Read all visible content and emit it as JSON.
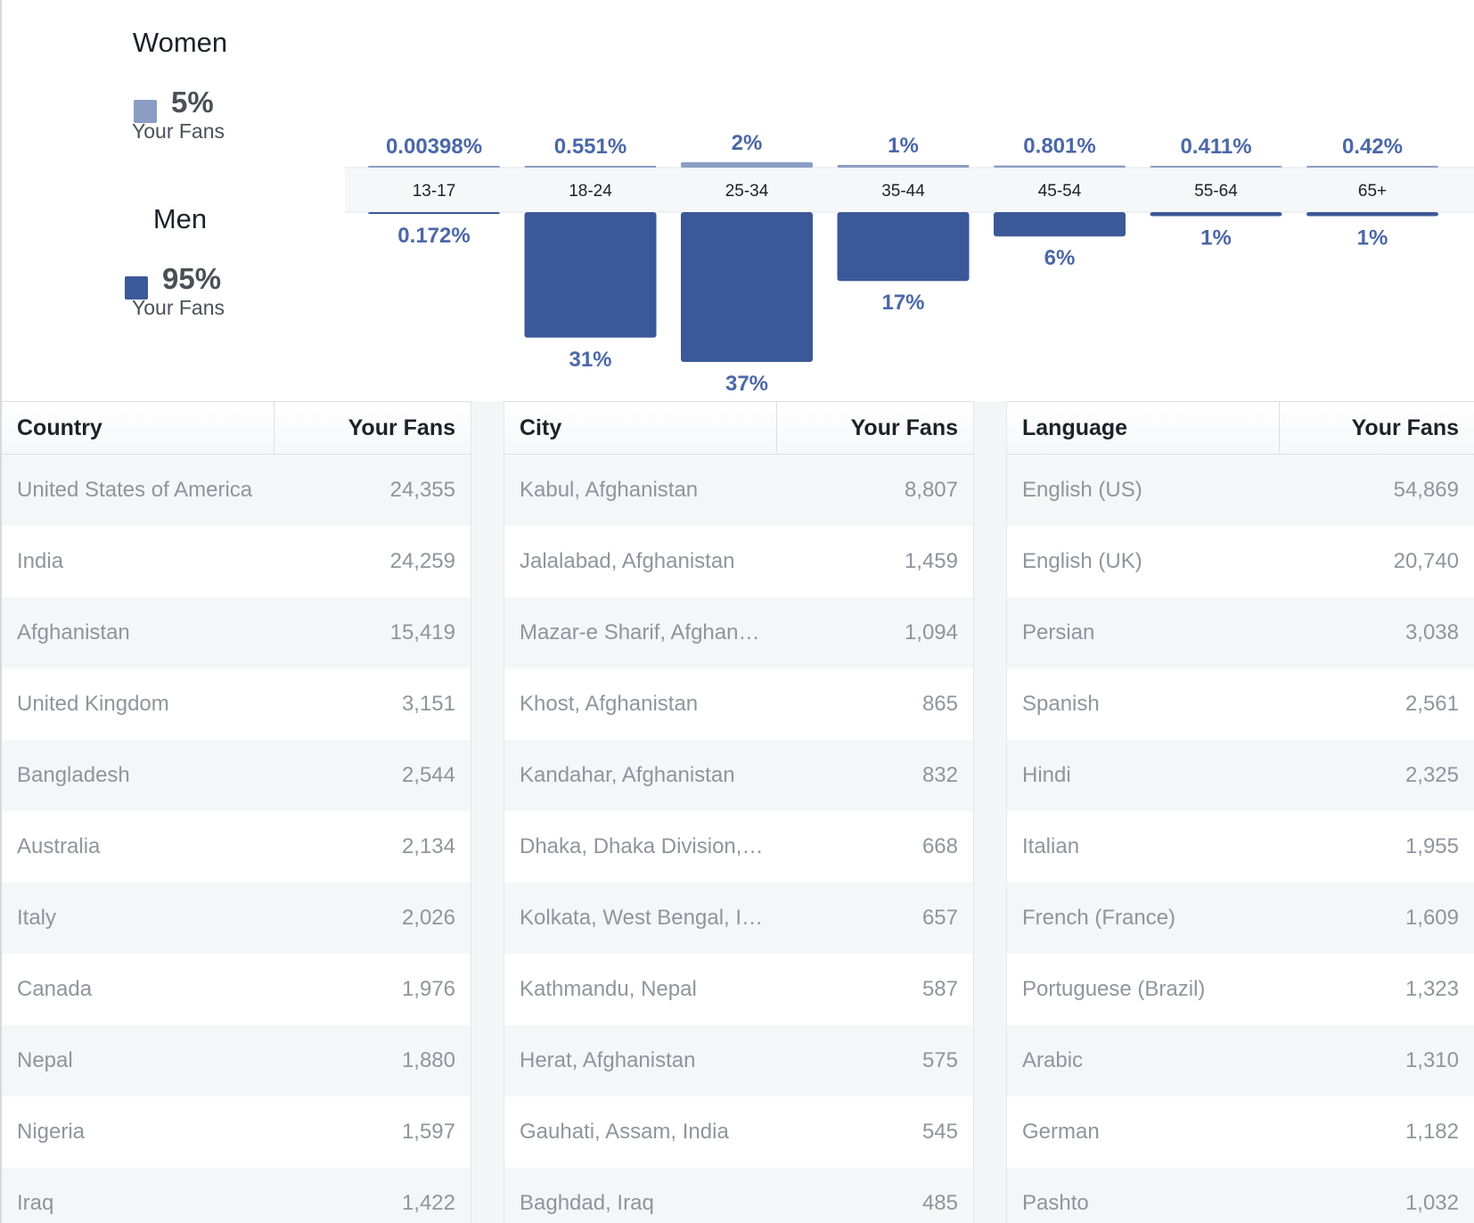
{
  "gender": {
    "women": {
      "title": "Women",
      "percent": "5%",
      "sub": "Your Fans",
      "color": "#8b9dc3"
    },
    "men": {
      "title": "Men",
      "percent": "95%",
      "sub": "Your Fans",
      "color": "#3b5998"
    }
  },
  "chart_data": {
    "type": "bar",
    "title": "",
    "categories": [
      "13-17",
      "18-24",
      "25-34",
      "35-44",
      "45-54",
      "55-64",
      "65+"
    ],
    "series": [
      {
        "name": "Women",
        "values": [
          0.00398,
          0.551,
          2,
          1,
          0.801,
          0.411,
          0.42
        ],
        "labels": [
          "0.00398%",
          "0.551%",
          "2%",
          "1%",
          "0.801%",
          "0.411%",
          "0.42%"
        ],
        "color": "#8b9dc3"
      },
      {
        "name": "Men",
        "values": [
          0.172,
          31,
          37,
          17,
          6,
          1,
          1
        ],
        "labels": [
          "0.172%",
          "31%",
          "37%",
          "17%",
          "6%",
          "1%",
          "1%"
        ],
        "color": "#3b5998"
      }
    ],
    "xlabel": "",
    "ylabel": "",
    "ylim": [
      0,
      37
    ]
  },
  "tables": [
    {
      "col1": "Country",
      "col2": "Your Fans",
      "rows": [
        [
          "United States of America",
          "24,355"
        ],
        [
          "India",
          "24,259"
        ],
        [
          "Afghanistan",
          "15,419"
        ],
        [
          "United Kingdom",
          "3,151"
        ],
        [
          "Bangladesh",
          "2,544"
        ],
        [
          "Australia",
          "2,134"
        ],
        [
          "Italy",
          "2,026"
        ],
        [
          "Canada",
          "1,976"
        ],
        [
          "Nepal",
          "1,880"
        ],
        [
          "Nigeria",
          "1,597"
        ],
        [
          "Iraq",
          "1,422"
        ]
      ]
    },
    {
      "col1": "City",
      "col2": "Your Fans",
      "rows": [
        [
          "Kabul, Afghanistan",
          "8,807"
        ],
        [
          "Jalalabad, Afghanistan",
          "1,459"
        ],
        [
          "Mazar-e Sharif, Afghan…",
          "1,094"
        ],
        [
          "Khost, Afghanistan",
          "865"
        ],
        [
          "Kandahar, Afghanistan",
          "832"
        ],
        [
          "Dhaka, Dhaka Division,…",
          "668"
        ],
        [
          "Kolkata, West Bengal, I…",
          "657"
        ],
        [
          "Kathmandu, Nepal",
          "587"
        ],
        [
          "Herat, Afghanistan",
          "575"
        ],
        [
          "Gauhati, Assam, India",
          "545"
        ],
        [
          "Baghdad, Iraq",
          "485"
        ]
      ]
    },
    {
      "col1": "Language",
      "col2": "Your Fans",
      "rows": [
        [
          "English (US)",
          "54,869"
        ],
        [
          "English (UK)",
          "20,740"
        ],
        [
          "Persian",
          "3,038"
        ],
        [
          "Spanish",
          "2,561"
        ],
        [
          "Hindi",
          "2,325"
        ],
        [
          "Italian",
          "1,955"
        ],
        [
          "French (France)",
          "1,609"
        ],
        [
          "Portuguese (Brazil)",
          "1,323"
        ],
        [
          "Arabic",
          "1,310"
        ],
        [
          "German",
          "1,182"
        ],
        [
          "Pashto",
          "1,032"
        ]
      ]
    }
  ]
}
